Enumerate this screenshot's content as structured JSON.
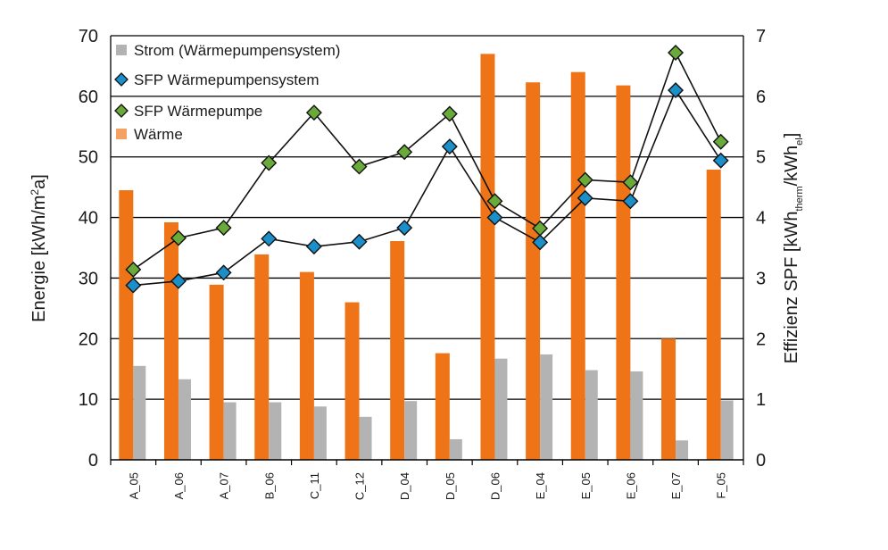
{
  "chart_data": {
    "type": "bar",
    "categories": [
      "A_05",
      "A_06",
      "A_07",
      "B_06",
      "C_11",
      "C_12",
      "D_04",
      "D_05",
      "D_06",
      "E_04",
      "E_05",
      "E_06",
      "E_07",
      "F_05"
    ],
    "series": [
      {
        "name": "Strom (Wärmepumpensystem)",
        "type": "bar",
        "axis": "left",
        "color": "#b3b3b3",
        "values": [
          15.5,
          13.3,
          9.5,
          9.5,
          8.8,
          7.1,
          9.7,
          3.4,
          16.7,
          17.4,
          14.8,
          14.6,
          3.2,
          9.8
        ]
      },
      {
        "name": "SFP Wärmepumpensystem",
        "type": "line",
        "axis": "right",
        "color": "#1b8fc9",
        "values": [
          2.88,
          2.95,
          3.09,
          3.65,
          3.52,
          3.6,
          3.83,
          5.17,
          4.0,
          3.59,
          4.32,
          4.27,
          6.1,
          4.94
        ]
      },
      {
        "name": "SFP Wärmepumpe",
        "type": "line",
        "axis": "right",
        "color": "#6aaa3a",
        "values": [
          3.14,
          3.66,
          3.83,
          4.9,
          5.73,
          4.84,
          5.08,
          5.71,
          4.27,
          3.82,
          4.62,
          4.58,
          6.72,
          5.25
        ]
      },
      {
        "name": "Wärme",
        "type": "bar",
        "axis": "left",
        "color": "#ee7417",
        "values": [
          44.5,
          39.2,
          28.9,
          33.9,
          31.0,
          26.0,
          36.1,
          17.6,
          67.0,
          62.3,
          64.0,
          61.8,
          20.0,
          47.9
        ]
      }
    ],
    "ylabel": "Energie [kWh/m²a]",
    "ylabel_parts": {
      "before": "Energie [kWh/m",
      "sup": "2",
      "after": "a]"
    },
    "y2label": "Effizienz SPF [kWh_therm/kWh_el]",
    "y2label_parts": {
      "a": "Effizienz SPF [kWh",
      "sub1": "therm",
      "b": "/kWh",
      "sub2": "el",
      "c": "]"
    },
    "ylim": [
      0,
      70
    ],
    "yticks": [
      "0",
      "10",
      "20",
      "30",
      "40",
      "50",
      "60",
      "70"
    ],
    "y2lim": [
      0,
      7
    ],
    "y2ticks": [
      "0",
      "1",
      "2",
      "3",
      "4",
      "5",
      "6",
      "7"
    ],
    "grid": true,
    "legend_position": "top-left"
  }
}
